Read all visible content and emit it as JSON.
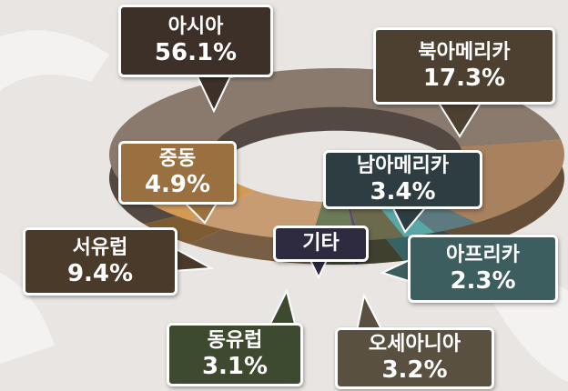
{
  "chart_data": {
    "type": "pie",
    "donut": true,
    "categories": [
      "북아메리카",
      "남아메리카",
      "아프리카",
      "오세아니아",
      "기타",
      "동유럽",
      "서유럽",
      "중동",
      "아시아"
    ],
    "values": [
      17.3,
      3.4,
      2.3,
      3.2,
      0.3,
      3.1,
      9.4,
      4.9,
      56.1
    ],
    "value_labels": [
      "17.3%",
      "3.4%",
      "2.3%",
      "3.2%",
      null,
      "3.1%",
      "9.4%",
      "4.9%",
      "56.1%"
    ],
    "colors": [
      "#a8825e",
      "#5d7a80",
      "#5aa7a8",
      "#6b6a4c",
      "#5a4f6a",
      "#6d7a58",
      "#c89c72",
      "#d29a55",
      "#8a7a6e"
    ]
  }
}
